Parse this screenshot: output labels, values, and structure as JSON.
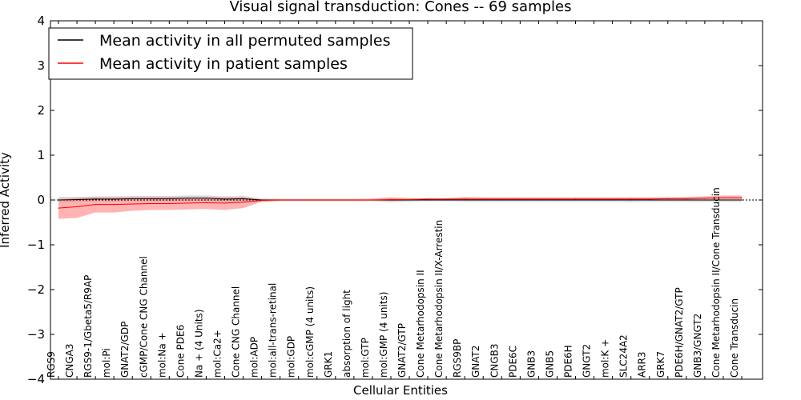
{
  "chart_data": {
    "type": "line",
    "title": "Visual signal transduction: Cones -- 69 samples",
    "xlabel": "Cellular Entities",
    "ylabel": "Inferred Activity",
    "ylim": [
      -4,
      4
    ],
    "yticks": [
      "−4",
      "−3",
      "−2",
      "−1",
      "0",
      "1",
      "2",
      "3",
      "4"
    ],
    "yticks_values": [
      -4,
      -3,
      -2,
      -1,
      0,
      1,
      2,
      3,
      4
    ],
    "legend_position": "top-left",
    "categories": [
      "RGS9",
      "CNGA3",
      "RGS9-1/Gbeta5/R9AP",
      "mol:Pi",
      "GNAT2/GDP",
      "cGMP/Cone CNG Channel",
      "mol:Na +",
      "Cone PDE6",
      "Na + (4 Units)",
      "mol:Ca2+",
      "Cone CNG Channel",
      "mol:ADP",
      "mol:all-trans-retinal",
      "mol:GDP",
      "mol:cGMP (4 units)",
      "GRK1",
      "absorption of light",
      "mol:GTP",
      "mol:GMP (4 units)",
      "GNAT2/GTP",
      "Cone Metarhodopsin II",
      "Cone Metarhodopsin II/X-Arrestin",
      "RGS9BP",
      "GNAT2",
      "CNGB3",
      "PDE6C",
      "GNB3",
      "GNB5",
      "PDE6H",
      "GNGT2",
      "mol:K +",
      "SLC24A2",
      "ARR3",
      "GRK7",
      "PDE6H/GNAT2/GTP",
      "GNB3/GNGT2",
      "Cone Metarhodopsin II/Cone Transducin",
      "Cone Transducin"
    ],
    "series": [
      {
        "name": "Mean activity in all permuted samples",
        "color": "#000000",
        "band_color": "#b8b8b8",
        "values": [
          0.0,
          0.01,
          0.02,
          0.02,
          0.03,
          0.03,
          0.03,
          0.04,
          0.04,
          0.02,
          0.03,
          0.0,
          0.0,
          0.0,
          0.0,
          0.0,
          0.0,
          0.0,
          0.0,
          0.0,
          0.0,
          0.0,
          0.0,
          0.0,
          0.0,
          0.0,
          0.0,
          0.0,
          0.0,
          0.0,
          0.0,
          0.0,
          0.0,
          0.0,
          0.0,
          0.0,
          0.0,
          0.0
        ],
        "lower": [
          -0.06,
          -0.05,
          -0.04,
          -0.04,
          -0.03,
          -0.03,
          -0.03,
          -0.02,
          -0.02,
          -0.04,
          -0.03,
          -0.04,
          -0.03,
          -0.03,
          -0.03,
          -0.03,
          -0.03,
          -0.03,
          -0.05,
          -0.04,
          -0.03,
          -0.03,
          -0.04,
          -0.04,
          -0.04,
          -0.04,
          -0.04,
          -0.04,
          -0.04,
          -0.04,
          -0.04,
          -0.05,
          -0.04,
          -0.04,
          -0.04,
          -0.04,
          -0.04,
          -0.04
        ],
        "upper": [
          0.07,
          0.07,
          0.08,
          0.08,
          0.09,
          0.09,
          0.09,
          0.1,
          0.1,
          0.08,
          0.09,
          0.04,
          0.03,
          0.03,
          0.03,
          0.03,
          0.03,
          0.03,
          0.05,
          0.04,
          0.03,
          0.03,
          0.04,
          0.04,
          0.04,
          0.04,
          0.04,
          0.04,
          0.04,
          0.04,
          0.04,
          0.05,
          0.04,
          0.04,
          0.04,
          0.04,
          0.04,
          0.04
        ]
      },
      {
        "name": "Mean activity in patient samples",
        "color": "#ff0000",
        "band_color": "#ff8080",
        "values": [
          -0.18,
          -0.15,
          -0.1,
          -0.1,
          -0.09,
          -0.08,
          -0.08,
          -0.07,
          -0.06,
          -0.07,
          -0.05,
          -0.01,
          0.0,
          0.0,
          0.0,
          0.0,
          0.0,
          0.0,
          0.01,
          0.01,
          0.02,
          0.02,
          0.02,
          0.02,
          0.02,
          0.02,
          0.02,
          0.02,
          0.02,
          0.02,
          0.02,
          0.02,
          0.02,
          0.03,
          0.03,
          0.04,
          0.05,
          0.05
        ],
        "lower": [
          -0.42,
          -0.4,
          -0.28,
          -0.28,
          -0.24,
          -0.22,
          -0.22,
          -0.21,
          -0.2,
          -0.22,
          -0.18,
          -0.04,
          -0.02,
          -0.02,
          -0.02,
          -0.02,
          -0.02,
          -0.02,
          -0.02,
          -0.01,
          0.0,
          0.0,
          0.0,
          0.0,
          0.0,
          0.0,
          0.0,
          0.0,
          0.0,
          0.0,
          0.0,
          0.0,
          0.0,
          0.01,
          0.01,
          0.02,
          0.03,
          0.03
        ],
        "upper": [
          0.02,
          0.05,
          0.06,
          0.06,
          0.06,
          0.06,
          0.06,
          0.06,
          0.06,
          0.06,
          0.06,
          0.01,
          0.02,
          0.02,
          0.02,
          0.02,
          0.02,
          0.03,
          0.06,
          0.04,
          0.04,
          0.04,
          0.07,
          0.06,
          0.06,
          0.06,
          0.06,
          0.06,
          0.06,
          0.06,
          0.06,
          0.06,
          0.06,
          0.06,
          0.07,
          0.08,
          0.1,
          0.1
        ]
      }
    ]
  }
}
